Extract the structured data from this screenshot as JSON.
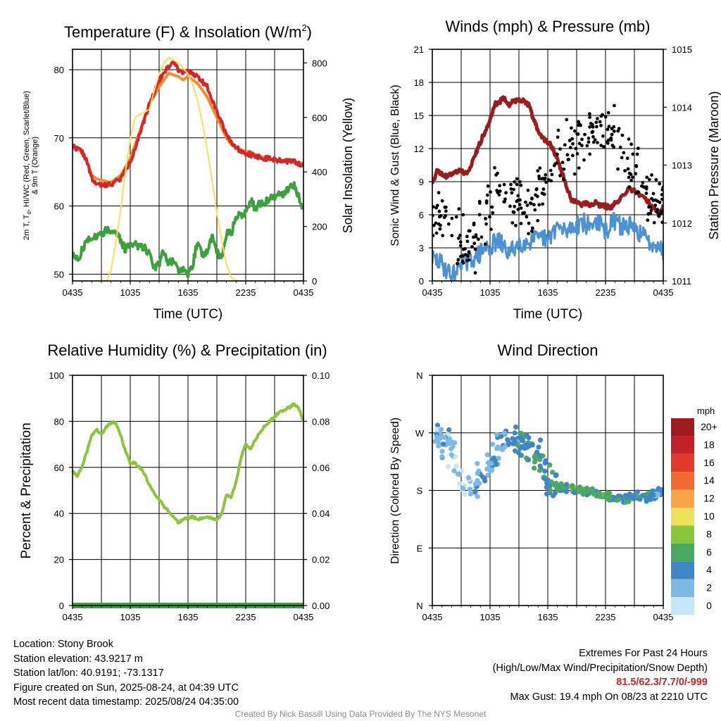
{
  "chart_data": [
    {
      "id": "temperature",
      "type": "line",
      "title": "Temperature (F) & Insolation (W/m",
      "title_sup": "2",
      "title_end": ")",
      "xlabel": "Time (UTC)",
      "ylabel_left": [
        "2m T, T",
        "d",
        ", HI/WC (Red, Green, Scarlet/Blue)",
        "& 9m T (Orange)"
      ],
      "ylabel_right": "Solar Insolation (Yellow)",
      "x_ticks": [
        "0435",
        "1035",
        "1635",
        "2235",
        "0435"
      ],
      "y_left_ticks": [
        "50",
        "60",
        "70",
        "80"
      ],
      "y_right_ticks": [
        "0",
        "200",
        "400",
        "600",
        "800"
      ],
      "ylim_left": [
        49,
        83
      ],
      "ylim_right": [
        0,
        850
      ],
      "xlim_hours": [
        0,
        24
      ],
      "grid": true,
      "series": [
        {
          "key": "t9m",
          "color": "#f28a30",
          "width": 4,
          "x": [
            0,
            1,
            1.5,
            2,
            2.5,
            3,
            3.5,
            4,
            5,
            6,
            7,
            8,
            9,
            10,
            11,
            11.5,
            12,
            12.5,
            13,
            14,
            15,
            16,
            16.5,
            17,
            18,
            18.5,
            19,
            19.5,
            20,
            21,
            22,
            23,
            24
          ],
          "y": [
            68.7,
            68,
            66.5,
            64.5,
            64,
            63.8,
            63.6,
            63.5,
            64.5,
            67,
            71,
            75,
            77.5,
            79.5,
            79,
            78.5,
            79,
            78.5,
            78,
            76,
            73,
            70,
            69,
            68.5,
            68,
            68,
            67.5,
            67.3,
            67,
            66.8,
            66.5,
            66.4,
            66.3
          ]
        },
        {
          "key": "t2m",
          "color": "#d42828",
          "width": 4,
          "x": [
            0,
            1,
            1.5,
            2,
            2.5,
            3,
            3.5,
            4,
            5,
            6,
            7,
            8,
            9,
            9.5,
            10,
            10.5,
            11,
            11.5,
            12,
            12.5,
            13,
            14,
            15,
            16,
            17,
            18,
            19,
            20,
            21,
            22,
            23,
            24
          ],
          "y": [
            68.8,
            68,
            66.5,
            64,
            63.2,
            63,
            63.1,
            63.2,
            64,
            66.5,
            70.5,
            75,
            78.5,
            79.5,
            80.5,
            81.2,
            80,
            79.7,
            79.6,
            79.5,
            79,
            77.5,
            74,
            70.5,
            68.5,
            67.8,
            67.3,
            67,
            66.8,
            66.6,
            66.5,
            66
          ],
          "jitter": 0.35
        },
        {
          "key": "td",
          "color": "#3ca13c",
          "width": 4,
          "x": [
            0,
            0.5,
            1,
            1.5,
            2,
            2.5,
            3,
            3.5,
            4,
            4.5,
            5,
            5.5,
            6,
            6.5,
            7,
            7.5,
            8,
            8.5,
            9,
            9.5,
            10,
            10.5,
            11,
            11.5,
            12,
            12.5,
            13,
            13.5,
            14,
            14.5,
            15,
            15.5,
            16,
            16.5,
            17,
            17.5,
            18,
            18.5,
            19,
            19.5,
            20,
            20.5,
            21,
            21.5,
            22,
            22.5,
            23,
            23.5,
            24
          ],
          "y": [
            53,
            52,
            53.5,
            55,
            55.5,
            55.5,
            56,
            56.5,
            56.5,
            56,
            55,
            53.5,
            54.5,
            54.5,
            54,
            54,
            53,
            51,
            51.5,
            53.5,
            51.5,
            52,
            50.5,
            51,
            50,
            51.5,
            55,
            52.5,
            53.5,
            55.5,
            53.5,
            52,
            56,
            56,
            58.5,
            58.5,
            59,
            61,
            59.5,
            60.5,
            60.5,
            61,
            61.5,
            61.5,
            62,
            62.5,
            63,
            61.5,
            59.5
          ],
          "jitter": 0.6
        },
        {
          "key": "insolation",
          "color": "#f8df5a",
          "width": 2,
          "axis": "right",
          "x": [
            0,
            3.3,
            3.6,
            4,
            4.5,
            5,
            5.5,
            6,
            6.5,
            7,
            7.5,
            8,
            8.5,
            9,
            9.5,
            10,
            10.5,
            11,
            11.5,
            12,
            12.5,
            13,
            13.5,
            14,
            14.5,
            15,
            15.5,
            16,
            16.5,
            17,
            17.5,
            18,
            24
          ],
          "y": [
            0,
            0,
            2,
            40,
            140,
            260,
            400,
            520,
            600,
            610,
            620,
            630,
            700,
            760,
            800,
            820,
            810,
            800,
            780,
            760,
            720,
            660,
            580,
            480,
            370,
            250,
            150,
            60,
            12,
            3,
            0,
            0,
            0
          ]
        }
      ]
    },
    {
      "id": "winds",
      "type": "line",
      "title": "Winds (mph) & Pressure (mb)",
      "xlabel": "Time (UTC)",
      "ylabel_left": "Sonic Wind & Gust (Blue, Black)",
      "ylabel_right": "Station Pressure (Maroon)",
      "x_ticks": [
        "0435",
        "1035",
        "1635",
        "2235",
        "0435"
      ],
      "y_left_ticks": [
        "0",
        "3",
        "6",
        "9",
        "12",
        "15",
        "18",
        "21"
      ],
      "y_right_ticks": [
        "1011",
        "1012",
        "1013",
        "1014",
        "1015"
      ],
      "ylim_left": [
        0,
        21
      ],
      "ylim_right": [
        1011,
        1015
      ],
      "xlim_hours": [
        0,
        24
      ],
      "grid": true,
      "series": [
        {
          "key": "wind",
          "color": "#4b92d4",
          "width": 3,
          "x": [
            0,
            0.5,
            1,
            1.5,
            2,
            2.5,
            3,
            3.5,
            4,
            4.5,
            5,
            5.5,
            6,
            6.5,
            7,
            7.5,
            8,
            8.5,
            9,
            9.5,
            10,
            10.5,
            11,
            11.5,
            12,
            12.5,
            13,
            13.5,
            14,
            14.5,
            15,
            15.5,
            16,
            16.5,
            17,
            17.5,
            18,
            18.5,
            19,
            19.5,
            20,
            20.5,
            21,
            21.5,
            22,
            22.5,
            23,
            23.5,
            24
          ],
          "y": [
            2,
            1.8,
            1.5,
            1,
            0.5,
            0.8,
            2,
            1.5,
            2,
            2.2,
            2.5,
            3,
            3,
            3.5,
            3.5,
            3,
            2.5,
            3,
            3.5,
            3.5,
            3.5,
            4,
            3.5,
            4,
            3.5,
            4.5,
            5,
            4.5,
            4.5,
            5,
            5,
            5.5,
            5,
            5,
            5.5,
            5,
            4.5,
            5,
            5.5,
            5,
            5,
            5,
            4.5,
            4.5,
            4,
            3.5,
            3.5,
            3.5,
            2.5
          ],
          "jitter": 0.9
        },
        {
          "key": "pressure",
          "color": "#9b1c1c",
          "width": 5,
          "axis": "right",
          "x": [
            0,
            0.5,
            1,
            1.5,
            2,
            2.5,
            3,
            3.5,
            4,
            4.5,
            5,
            5.5,
            6,
            6.5,
            7,
            7.5,
            8,
            8.5,
            9,
            9.5,
            10,
            10.5,
            11,
            11.5,
            12,
            12.5,
            13,
            13.5,
            14,
            14.5,
            15,
            15.5,
            16,
            16.5,
            17,
            17.5,
            18,
            18.5,
            19,
            19.5,
            20,
            20.5,
            21,
            21.5,
            22,
            22.5,
            23,
            23.5,
            24
          ],
          "y": [
            1012.7,
            1012.9,
            1012.85,
            1012.8,
            1012.85,
            1012.9,
            1012.9,
            1012.85,
            1013,
            1013.2,
            1013.4,
            1013.6,
            1013.8,
            1014.05,
            1014.1,
            1014.15,
            1014.05,
            1014.1,
            1014.15,
            1014.1,
            1014.05,
            1013.8,
            1013.6,
            1013.45,
            1013.4,
            1013.3,
            1013.1,
            1012.85,
            1012.6,
            1012.4,
            1012.35,
            1012.3,
            1012.35,
            1012.3,
            1012.35,
            1012.3,
            1012.3,
            1012.25,
            1012.35,
            1012.4,
            1012.5,
            1012.6,
            1012.55,
            1012.5,
            1012.45,
            1012.35,
            1012.25,
            1012.15,
            1012.3
          ],
          "jitter": 0.04
        },
        {
          "key": "gust",
          "color": "#000000",
          "style": "points",
          "n": 300,
          "x": [
            0,
            1,
            2,
            3,
            4,
            5,
            6,
            7,
            8,
            9,
            10,
            11,
            12,
            13,
            14,
            15,
            16,
            17,
            18,
            19,
            20,
            21,
            22,
            23,
            24
          ],
          "y": [
            6,
            5.5,
            5,
            3.5,
            2.8,
            5,
            6.5,
            8,
            8.5,
            7.5,
            7,
            8,
            9.5,
            11,
            12,
            12.5,
            13.5,
            14,
            13.5,
            13,
            11.5,
            10,
            8.5,
            7.5,
            7
          ],
          "spread": 3.2,
          "seed": 7
        }
      ]
    },
    {
      "id": "humidity",
      "type": "line",
      "title": "Relative Humidity (%) & Precipitation (in)",
      "xlabel": "",
      "ylabel_left": "Percent & Precipitation",
      "ylabel_right": "",
      "x_ticks": [
        "0435",
        "1035",
        "1635",
        "2235",
        "0435"
      ],
      "y_left_ticks": [
        "0",
        "20",
        "40",
        "60",
        "80",
        "100"
      ],
      "y_right_ticks": [
        "0.00",
        "0.02",
        "0.04",
        "0.06",
        "0.08",
        "0.10"
      ],
      "ylim_left": [
        0,
        100
      ],
      "ylim_right": [
        0,
        0.1
      ],
      "xlim_hours": [
        0,
        24
      ],
      "grid": true,
      "series": [
        {
          "key": "rh",
          "color": "#8cc43c",
          "width": 4,
          "x": [
            0,
            0.5,
            1,
            1.5,
            2,
            2.5,
            3,
            3.5,
            4,
            4.5,
            5,
            5.5,
            6,
            6.5,
            7,
            7.5,
            8,
            8.5,
            9,
            9.5,
            10,
            10.5,
            11,
            11.5,
            12,
            12.5,
            13,
            13.5,
            14,
            14.5,
            15,
            15.5,
            16,
            16.5,
            17,
            17.5,
            18,
            18.5,
            19,
            19.5,
            20,
            20.5,
            21,
            21.5,
            22,
            22.5,
            23,
            23.5,
            24
          ],
          "y": [
            58,
            56.5,
            60,
            67,
            74,
            76.5,
            74,
            77.5,
            79.5,
            79,
            74,
            67,
            62,
            62,
            60,
            57,
            52,
            49,
            46,
            43,
            41,
            38.5,
            36,
            37.5,
            38,
            38.5,
            37.5,
            38,
            38.5,
            38,
            37,
            40,
            48,
            47,
            54,
            64,
            70,
            68,
            72,
            75.5,
            78,
            80,
            82,
            84,
            85,
            86,
            87.5,
            86,
            80
          ],
          "jitter": 0.5
        },
        {
          "key": "precip",
          "color": "#3ca13c",
          "width": 8,
          "axis": "right",
          "x": [
            0,
            24
          ],
          "y": [
            0,
            0
          ]
        }
      ]
    },
    {
      "id": "direction",
      "type": "scatter",
      "title": "Wind Direction",
      "xlabel": "",
      "ylabel_left": "Direction (Colored By Speed)",
      "x_ticks": [
        "0435",
        "1035",
        "1635",
        "2235",
        "0435"
      ],
      "y_ticks": [
        "N",
        "E",
        "S",
        "W",
        "N"
      ],
      "ylim_degrees": [
        0,
        360
      ],
      "xlim_hours": [
        0,
        24
      ],
      "grid": true,
      "series": [
        {
          "key": "dir",
          "style": "points",
          "n": 330,
          "x": [
            0,
            1,
            2,
            3,
            4,
            5,
            6,
            7,
            8,
            9,
            10,
            11,
            12,
            13,
            14,
            15,
            16,
            17,
            18,
            19,
            20,
            21,
            22,
            23,
            24
          ],
          "y": [
            265,
            258,
            240,
            195,
            185,
            200,
            220,
            250,
            260,
            255,
            250,
            240,
            195,
            185,
            185,
            180,
            178,
            175,
            172,
            168,
            168,
            170,
            170,
            172,
            178
          ],
          "spread": 14,
          "speed": [
            2.5,
            2,
            1.5,
            1,
            1.5,
            2.5,
            3,
            3.5,
            4,
            4,
            4.5,
            5,
            4.5,
            5,
            5.5,
            6,
            5.5,
            5.5,
            6,
            5.5,
            5,
            4.5,
            4.5,
            4,
            3.5
          ],
          "seed": 11
        }
      ],
      "legend": {
        "title": "mph",
        "position": "right",
        "entries": [
          {
            "label": "20+",
            "color": "#9d1b1e"
          },
          {
            "label": "18",
            "color": "#c32127"
          },
          {
            "label": "16",
            "color": "#e13a2b"
          },
          {
            "label": "14",
            "color": "#f26a30"
          },
          {
            "label": "12",
            "color": "#f9a448"
          },
          {
            "label": "10",
            "color": "#ede15a"
          },
          {
            "label": "8",
            "color": "#8cc43c"
          },
          {
            "label": "6",
            "color": "#4aa862"
          },
          {
            "label": "4",
            "color": "#3f86c6"
          },
          {
            "label": "2",
            "color": "#7db9e3"
          },
          {
            "label": "0",
            "color": "#c5e6f7"
          }
        ]
      }
    }
  ],
  "info": {
    "location": "Location: Stony Brook",
    "elevation": "Station elevation: 43.9217 m",
    "latlon": "Station lat/lon: 40.9191; -73.1317",
    "created": "Figure created on Sun, 2025-08-24, at 04:39 UTC",
    "recent": "Most recent data timestamp: 2025/08/24 04:35:00"
  },
  "extremes": {
    "title": "Extremes For Past 24 Hours",
    "subtitle": "(High/Low/Max Wind/Precipitation/Snow Depth)",
    "values": "81.5/62.3/7.7/0/-999",
    "max_gust": "Max Gust: 19.4 mph On 08/23 at 2210 UTC"
  },
  "credit": "Created By Nick Bassill Using Data Provided By The NYS Mesonet"
}
